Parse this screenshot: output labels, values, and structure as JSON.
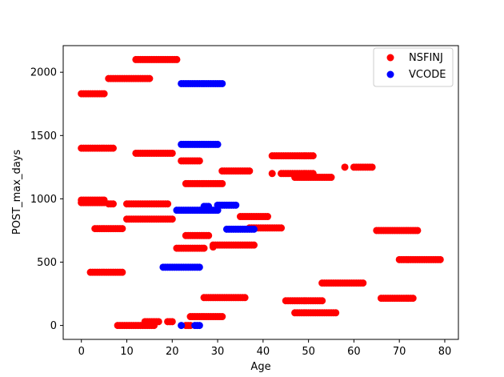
{
  "chart_data": {
    "type": "scatter",
    "title": "",
    "xlabel": "Age",
    "ylabel": "POST_max_days",
    "xlim": [
      -4,
      83
    ],
    "ylim": [
      -110,
      2210
    ],
    "xticks": [
      0,
      10,
      20,
      30,
      40,
      50,
      60,
      70,
      80
    ],
    "yticks": [
      0,
      500,
      1000,
      1500,
      2000
    ],
    "grid": false,
    "legend_position": "upper right",
    "series": [
      {
        "name": "NSFINJ",
        "color": "#ff0000",
        "segments": [
          {
            "x_start": 0,
            "x_end": 5,
            "y": 1830
          },
          {
            "x_start": 0,
            "x_end": 7,
            "y": 1400
          },
          {
            "x_start": 0,
            "x_end": 5,
            "y": 990
          },
          {
            "x_start": 0,
            "x_end": 5,
            "y": 970
          },
          {
            "x_start": 6,
            "x_end": 7,
            "y": 960
          },
          {
            "x_start": 2,
            "x_end": 9,
            "y": 420
          },
          {
            "x_start": 3,
            "x_end": 9,
            "y": 765
          },
          {
            "x_start": 6,
            "x_end": 15,
            "y": 1950
          },
          {
            "x_start": 12,
            "x_end": 21,
            "y": 2100
          },
          {
            "x_start": 12,
            "x_end": 20,
            "y": 1360
          },
          {
            "x_start": 10,
            "x_end": 19,
            "y": 960
          },
          {
            "x_start": 10,
            "x_end": 20,
            "y": 840
          },
          {
            "x_start": 8,
            "x_end": 16,
            "y": 0
          },
          {
            "x_start": 14,
            "x_end": 17,
            "y": 30
          },
          {
            "x_start": 19,
            "x_end": 20,
            "y": 30
          },
          {
            "x_start": 22,
            "x_end": 26,
            "y": 1300
          },
          {
            "x_start": 23,
            "x_end": 31,
            "y": 1120
          },
          {
            "x_start": 21,
            "x_end": 27,
            "y": 610
          },
          {
            "x_start": 23,
            "x_end": 28,
            "y": 710
          },
          {
            "x_start": 23,
            "x_end": 24,
            "y": 0
          },
          {
            "x_start": 24,
            "x_end": 31,
            "y": 70
          },
          {
            "x_start": 27,
            "x_end": 36,
            "y": 220
          },
          {
            "x_start": 29,
            "x_end": 38,
            "y": 635
          },
          {
            "x_start": 29,
            "x_end": 29,
            "y": 620
          },
          {
            "x_start": 31,
            "x_end": 37,
            "y": 1220
          },
          {
            "x_start": 35,
            "x_end": 41,
            "y": 860
          },
          {
            "x_start": 37,
            "x_end": 44,
            "y": 770
          },
          {
            "x_start": 42,
            "x_end": 51,
            "y": 1340
          },
          {
            "x_start": 42,
            "x_end": 42,
            "y": 1200
          },
          {
            "x_start": 44,
            "x_end": 51,
            "y": 1200
          },
          {
            "x_start": 47,
            "x_end": 55,
            "y": 1170
          },
          {
            "x_start": 45,
            "x_end": 53,
            "y": 195
          },
          {
            "x_start": 47,
            "x_end": 56,
            "y": 100
          },
          {
            "x_start": 53,
            "x_end": 62,
            "y": 335
          },
          {
            "x_start": 58,
            "x_end": 58,
            "y": 1250
          },
          {
            "x_start": 60,
            "x_end": 64,
            "y": 1250
          },
          {
            "x_start": 65,
            "x_end": 74,
            "y": 750
          },
          {
            "x_start": 66,
            "x_end": 73,
            "y": 215
          },
          {
            "x_start": 70,
            "x_end": 79,
            "y": 520
          }
        ]
      },
      {
        "name": "VCODE",
        "color": "#0000ff",
        "segments": [
          {
            "x_start": 22,
            "x_end": 31,
            "y": 1910
          },
          {
            "x_start": 22,
            "x_end": 30,
            "y": 1430
          },
          {
            "x_start": 21,
            "x_end": 30,
            "y": 910
          },
          {
            "x_start": 27,
            "x_end": 28,
            "y": 940
          },
          {
            "x_start": 30,
            "x_end": 34,
            "y": 950
          },
          {
            "x_start": 32,
            "x_end": 38,
            "y": 760
          },
          {
            "x_start": 18,
            "x_end": 26,
            "y": 460
          },
          {
            "x_start": 22,
            "x_end": 22,
            "y": 0
          },
          {
            "x_start": 25,
            "x_end": 26,
            "y": 0
          }
        ]
      }
    ]
  }
}
